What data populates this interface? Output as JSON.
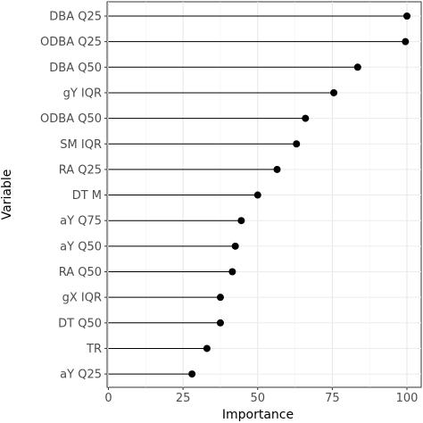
{
  "chart_data": {
    "type": "lollipop",
    "xlabel": "Importance",
    "ylabel": "Variable",
    "xlim": [
      0,
      100
    ],
    "xticks": [
      "0",
      "25",
      "50",
      "75",
      "100"
    ],
    "grid": true,
    "categories": [
      "DBA Q25",
      "ODBA Q25",
      "DBA Q50",
      "gY IQR",
      "ODBA Q50",
      "SM IQR",
      "RA Q25",
      "DT M",
      "aY Q75",
      "aY Q50",
      "RA Q50",
      "gX IQR",
      "DT Q50",
      "TR",
      "aY Q25"
    ],
    "values": [
      100,
      99.5,
      83.5,
      75.5,
      66,
      63,
      56.5,
      50,
      44.5,
      42.5,
      41.5,
      37.5,
      37.5,
      33,
      28
    ]
  }
}
